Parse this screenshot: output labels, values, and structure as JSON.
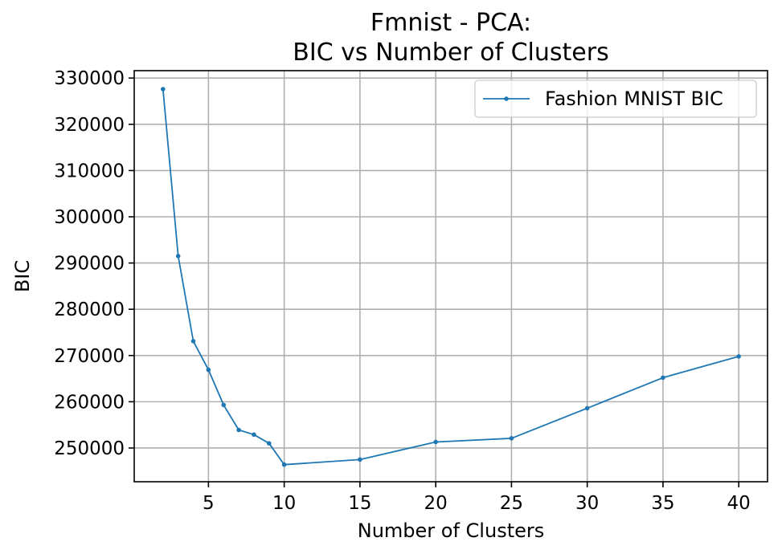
{
  "chart_data": {
    "type": "line",
    "title": [
      "Fmnist - PCA:",
      "BIC vs Number of Clusters"
    ],
    "xlabel": "Number of Clusters",
    "ylabel": "BIC",
    "xlim": [
      0.1,
      41.9
    ],
    "ylim": [
      242700,
      331600
    ],
    "xticks": [
      5,
      10,
      15,
      20,
      25,
      30,
      35,
      40
    ],
    "yticks": [
      250000,
      260000,
      270000,
      280000,
      290000,
      300000,
      310000,
      320000,
      330000
    ],
    "grid": true,
    "legend_position": "top-right",
    "series": [
      {
        "name": "Fashion MNIST BIC",
        "color": "#1f77b4",
        "marker": "circle",
        "x": [
          2,
          3,
          4,
          5,
          6,
          7,
          8,
          9,
          10,
          15,
          20,
          25,
          30,
          35,
          40
        ],
        "y": [
          327600,
          291500,
          273100,
          266900,
          259300,
          253900,
          252900,
          251000,
          246400,
          247500,
          251300,
          252100,
          258600,
          265200,
          269800
        ]
      }
    ]
  }
}
